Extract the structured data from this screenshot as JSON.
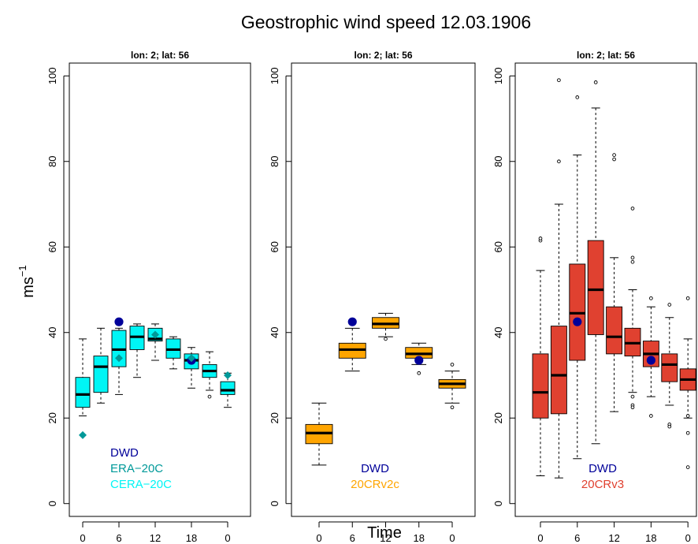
{
  "title": "Geostrophic wind speed 12.03.1906",
  "ylabel_base": "ms",
  "ylabel_sup": "−1",
  "xlabel": "Time",
  "chart_data": [
    {
      "type": "box",
      "subtitle": "lon: 2; lat: 56",
      "ylim": [
        -3,
        103
      ],
      "yticks": [
        0,
        20,
        40,
        60,
        80,
        100
      ],
      "xticks": [
        {
          "pos": 0,
          "label": "0"
        },
        {
          "pos": 2,
          "label": "6"
        },
        {
          "pos": 4,
          "label": "12"
        },
        {
          "pos": 6,
          "label": "18"
        },
        {
          "pos": 8,
          "label": "0"
        }
      ],
      "fill": "#00f5f5",
      "boxes": [
        {
          "x": 0,
          "lo": 20.5,
          "q1": 22.5,
          "med": 25.5,
          "q3": 29.5,
          "hi": 38.5,
          "out": []
        },
        {
          "x": 1,
          "lo": 23.5,
          "q1": 26,
          "med": 32,
          "q3": 34.5,
          "hi": 41,
          "out": []
        },
        {
          "x": 2,
          "lo": 25.5,
          "q1": 32,
          "med": 36,
          "q3": 40.5,
          "hi": 41,
          "out": []
        },
        {
          "x": 3,
          "lo": 29.5,
          "q1": 36,
          "med": 39,
          "q3": 41.5,
          "hi": 42,
          "out": []
        },
        {
          "x": 4,
          "lo": 33.5,
          "q1": 38,
          "med": 38.5,
          "q3": 41,
          "hi": 42,
          "out": []
        },
        {
          "x": 5,
          "lo": 31.5,
          "q1": 34,
          "med": 36,
          "q3": 38.5,
          "hi": 39,
          "out": []
        },
        {
          "x": 6,
          "lo": 27,
          "q1": 31.5,
          "med": 33.5,
          "q3": 35,
          "hi": 36.5,
          "out": []
        },
        {
          "x": 7,
          "lo": 26.5,
          "q1": 29.5,
          "med": 31,
          "q3": 32.5,
          "hi": 35.5,
          "out": [
            25
          ]
        },
        {
          "x": 8,
          "lo": 22.5,
          "q1": 25.5,
          "med": 26.5,
          "q3": 28.5,
          "hi": 30.5,
          "out": []
        }
      ],
      "points": [
        {
          "name": "DWD",
          "shape": "circle",
          "color": "#000099",
          "data": [
            [
              2,
              42.5
            ],
            [
              6,
              33.5
            ]
          ]
        },
        {
          "name": "ERA-20C",
          "shape": "diamond",
          "color": "#009999",
          "data": [
            [
              0,
              16
            ],
            [
              2,
              34
            ],
            [
              4,
              39.5
            ],
            [
              6,
              34
            ],
            [
              8,
              30
            ]
          ]
        },
        {
          "name": "CERA-20C",
          "shape": "none",
          "color": "#00f5f5",
          "data": []
        }
      ],
      "legend": [
        {
          "text": "DWD",
          "color": "#000099"
        },
        {
          "text": "ERA−20C",
          "color": "#009999"
        },
        {
          "text": "CERA−20C",
          "color": "#00f5f5"
        }
      ],
      "legend_position": "bottom-left"
    },
    {
      "type": "box",
      "subtitle": "lon: 2; lat: 56",
      "ylim": [
        -3,
        103
      ],
      "yticks": [
        0,
        20,
        40,
        60,
        80,
        100
      ],
      "xticks": [
        {
          "pos": 0,
          "label": "0"
        },
        {
          "pos": 1,
          "label": "6"
        },
        {
          "pos": 2,
          "label": "12"
        },
        {
          "pos": 3,
          "label": "18"
        },
        {
          "pos": 4,
          "label": "0"
        }
      ],
      "fill": "#ffa500",
      "boxes": [
        {
          "x": 0,
          "lo": 9,
          "q1": 14,
          "med": 16.5,
          "q3": 18.5,
          "hi": 23.5,
          "out": []
        },
        {
          "x": 1,
          "lo": 31,
          "q1": 34,
          "med": 36,
          "q3": 37.5,
          "hi": 41,
          "out": []
        },
        {
          "x": 2,
          "lo": 39,
          "q1": 41,
          "med": 42,
          "q3": 43.5,
          "hi": 44.5,
          "out": [
            38.5
          ]
        },
        {
          "x": 3,
          "lo": 32.5,
          "q1": 34,
          "med": 35,
          "q3": 36.5,
          "hi": 37.5,
          "out": [
            30.5
          ]
        },
        {
          "x": 4,
          "lo": 23.5,
          "q1": 27,
          "med": 28,
          "q3": 29,
          "hi": 31,
          "out": [
            22.5,
            32.5
          ]
        }
      ],
      "points": [
        {
          "name": "DWD",
          "shape": "circle",
          "color": "#000099",
          "data": [
            [
              1,
              42.5
            ],
            [
              3,
              33.5
            ]
          ]
        }
      ],
      "legend": [
        {
          "text": "DWD",
          "color": "#000099"
        },
        {
          "text": "20CRv2c",
          "color": "#ffa500"
        }
      ],
      "legend_position": "bottom-right"
    },
    {
      "type": "box",
      "subtitle": "lon: 2; lat: 56",
      "ylim": [
        -3,
        103
      ],
      "yticks": [
        0,
        20,
        40,
        60,
        80,
        100
      ],
      "xticks": [
        {
          "pos": 0,
          "label": "0"
        },
        {
          "pos": 2,
          "label": "6"
        },
        {
          "pos": 4,
          "label": "12"
        },
        {
          "pos": 6,
          "label": "18"
        },
        {
          "pos": 8,
          "label": "0"
        }
      ],
      "fill": "#e04130",
      "boxes": [
        {
          "x": 0,
          "lo": 6.5,
          "q1": 20,
          "med": 26,
          "q3": 35,
          "hi": 54.5,
          "out": [
            61.5,
            62
          ]
        },
        {
          "x": 1,
          "lo": 6,
          "q1": 21,
          "med": 30,
          "q3": 41.5,
          "hi": 70,
          "out": [
            80,
            99
          ]
        },
        {
          "x": 2,
          "lo": 10.5,
          "q1": 33.5,
          "med": 44.5,
          "q3": 56,
          "hi": 81.5,
          "out": [
            95
          ]
        },
        {
          "x": 3,
          "lo": 14,
          "q1": 39.5,
          "med": 50,
          "q3": 61.5,
          "hi": 92.5,
          "out": [
            98.5
          ]
        },
        {
          "x": 4,
          "lo": 21.5,
          "q1": 35,
          "med": 39,
          "q3": 46,
          "hi": 57.5,
          "out": [
            81.5,
            80.5
          ]
        },
        {
          "x": 5,
          "lo": 26,
          "q1": 34.5,
          "med": 37.5,
          "q3": 41,
          "hi": 50,
          "out": [
            69,
            57.5,
            56.5,
            25,
            23,
            22.5
          ]
        },
        {
          "x": 6,
          "lo": 25,
          "q1": 32,
          "med": 35,
          "q3": 38,
          "hi": 46,
          "out": [
            48,
            20.5
          ]
        },
        {
          "x": 7,
          "lo": 23,
          "q1": 28.5,
          "med": 32.5,
          "q3": 35,
          "hi": 43.5,
          "out": [
            46.5,
            18.5,
            18
          ]
        },
        {
          "x": 8,
          "lo": 20,
          "q1": 26.5,
          "med": 29,
          "q3": 31.5,
          "hi": 38.5,
          "out": [
            48,
            20.5,
            16.5,
            8.5
          ]
        }
      ],
      "points": [
        {
          "name": "DWD",
          "shape": "circle",
          "color": "#000099",
          "data": [
            [
              2,
              42.5
            ],
            [
              6,
              33.5
            ]
          ]
        }
      ],
      "legend": [
        {
          "text": "DWD",
          "color": "#000099"
        },
        {
          "text": "20CRv3",
          "color": "#e04130"
        }
      ],
      "legend_position": "bottom-right"
    }
  ]
}
